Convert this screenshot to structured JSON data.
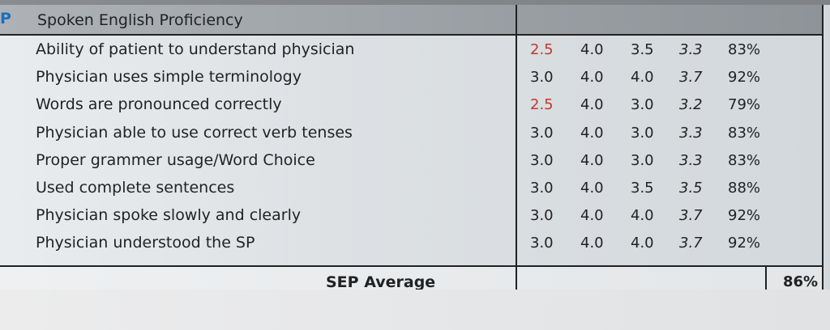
{
  "section": {
    "marker": "P",
    "title": "Spoken English Proficiency"
  },
  "rows": [
    {
      "label": "Ability of patient to understand physician",
      "v1": "2.5",
      "v2": "4.0",
      "v3": "3.5",
      "avg": "3.3",
      "pct": "83%",
      "v1_flag": "red"
    },
    {
      "label": "Physician uses simple terminology",
      "v1": "3.0",
      "v2": "4.0",
      "v3": "4.0",
      "avg": "3.7",
      "pct": "92%",
      "v1_flag": ""
    },
    {
      "label": "Words are pronounced correctly",
      "v1": "2.5",
      "v2": "4.0",
      "v3": "3.0",
      "avg": "3.2",
      "pct": "79%",
      "v1_flag": "red"
    },
    {
      "label": "Physician able to use correct verb tenses",
      "v1": "3.0",
      "v2": "4.0",
      "v3": "3.0",
      "avg": "3.3",
      "pct": "83%",
      "v1_flag": ""
    },
    {
      "label": "Proper grammer usage/Word Choice",
      "v1": "3.0",
      "v2": "4.0",
      "v3": "3.0",
      "avg": "3.3",
      "pct": "83%",
      "v1_flag": ""
    },
    {
      "label": "Used complete sentences",
      "v1": "3.0",
      "v2": "4.0",
      "v3": "3.5",
      "avg": "3.5",
      "pct": "88%",
      "v1_flag": ""
    },
    {
      "label": "Physician spoke slowly and clearly",
      "v1": "3.0",
      "v2": "4.0",
      "v3": "4.0",
      "avg": "3.7",
      "pct": "92%",
      "v1_flag": ""
    },
    {
      "label": "Physician understood the SP",
      "v1": "3.0",
      "v2": "4.0",
      "v3": "4.0",
      "avg": "3.7",
      "pct": "92%",
      "v1_flag": ""
    }
  ],
  "summary": {
    "label": "SEP Average",
    "value": "86%"
  },
  "colors": {
    "low_score": "#c0392b",
    "marker": "#1a6fc2"
  }
}
